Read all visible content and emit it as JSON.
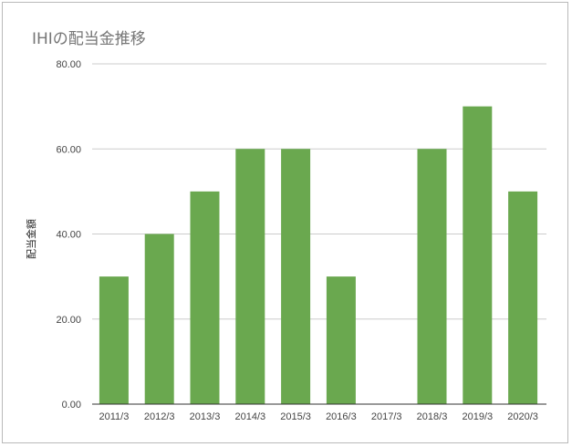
{
  "chart_data": {
    "type": "bar",
    "title": "IHIの配当金推移",
    "xlabel": "",
    "ylabel": "配当金額",
    "categories": [
      "2011/3",
      "2012/3",
      "2013/3",
      "2014/3",
      "2015/3",
      "2016/3",
      "2017/3",
      "2018/3",
      "2019/3",
      "2020/3"
    ],
    "values": [
      30,
      40,
      50,
      60,
      60,
      30,
      0,
      60,
      70,
      50
    ],
    "ylim": [
      0,
      80
    ],
    "yticks": [
      "0.00",
      "20.00",
      "40.00",
      "60.00",
      "80.00"
    ],
    "grid": true,
    "legend": "none",
    "bar_color": "#6aa84f",
    "grid_color": "#cccccc",
    "axis_color": "#333333"
  }
}
